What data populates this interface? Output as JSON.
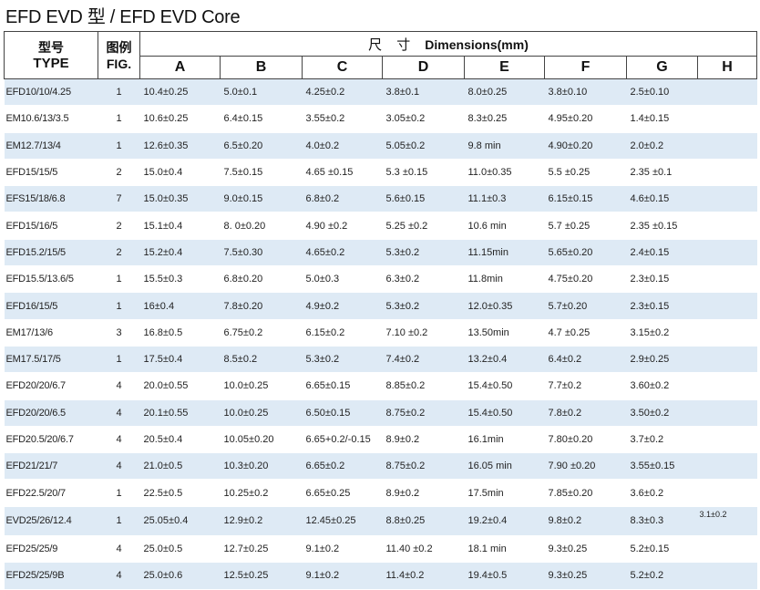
{
  "page_title": "EFD EVD 型  / EFD EVD Core",
  "header": {
    "type_cn": "型号",
    "type_en": "TYPE",
    "fig_cn": "图例",
    "fig_en": "FIG.",
    "dim_cn": "尺 寸",
    "dim_en": "Dimensions(mm)",
    "cols": [
      "A",
      "B",
      "C",
      "D",
      "E",
      "F",
      "G",
      "H"
    ]
  },
  "rows": [
    {
      "type": "EFD10/10/4.25",
      "fig": "1",
      "a": "10.4±0.25",
      "b": "5.0±0.1",
      "c": "4.25±0.2",
      "d": "3.8±0.1",
      "e": "8.0±0.25",
      "f": "3.8±0.10",
      "g": "2.5±0.10",
      "h": ""
    },
    {
      "type": "EM10.6/13/3.5",
      "fig": "1",
      "a": "10.6±0.25",
      "b": "6.4±0.15",
      "c": "3.55±0.2",
      "d": "3.05±0.2",
      "e": "8.3±0.25",
      "f": "4.95±0.20",
      "g": "1.4±0.15",
      "h": ""
    },
    {
      "type": "EM12.7/13/4",
      "fig": "1",
      "a": "12.6±0.35",
      "b": "6.5±0.20",
      "c": "4.0±0.2",
      "d": "5.05±0.2",
      "e": "9.8  min",
      "f": "4.90±0.20",
      "g": "2.0±0.2",
      "h": ""
    },
    {
      "type": "EFD15/15/5",
      "fig": "2",
      "a": "15.0±0.4",
      "b": "7.5±0.15",
      "c": "4.65 ±0.15",
      "d": "5.3 ±0.15",
      "e": "11.0±0.35",
      "f": "5.5 ±0.25",
      "g": "2.35  ±0.1",
      "h": ""
    },
    {
      "type": "EFS15/18/6.8",
      "fig": "7",
      "a": "15.0±0.35",
      "b": "9.0±0.15",
      "c": "6.8±0.2",
      "d": "5.6±0.15",
      "e": "11.1±0.3",
      "f": "6.15±0.15",
      "g": "4.6±0.15",
      "h": ""
    },
    {
      "type": "EFD15/16/5",
      "fig": "2",
      "a": "15.1±0.4",
      "b": "8. 0±0.20",
      "c": "4.90 ±0.2",
      "d": "5.25 ±0.2",
      "e": "10.6   min",
      "f": "5.7 ±0.25",
      "g": "2.35 ±0.15",
      "h": ""
    },
    {
      "type": "EFD15.2/15/5",
      "fig": "2",
      "a": "15.2±0.4",
      "b": "7.5±0.30",
      "c": "4.65±0.2",
      "d": "5.3±0.2",
      "e": "11.15min",
      "f": "5.65±0.20",
      "g": "2.4±0.15",
      "h": ""
    },
    {
      "type": "EFD15.5/13.6/5",
      "fig": "1",
      "a": "15.5±0.3",
      "b": "6.8±0.20",
      "c": "5.0±0.3",
      "d": "6.3±0.2",
      "e": "11.8min",
      "f": "4.75±0.20",
      "g": "2.3±0.15",
      "h": ""
    },
    {
      "type": "EFD16/15/5",
      "fig": "1",
      "a": "16±0.4",
      "b": "7.8±0.20",
      "c": "4.9±0.2",
      "d": "5.3±0.2",
      "e": "12.0±0.35",
      "f": "5.7±0.20",
      "g": "2.3±0.15",
      "h": ""
    },
    {
      "type": "EM17/13/6",
      "fig": "3",
      "a": "16.8±0.5",
      "b": "6.75±0.2",
      "c": "6.15±0.2",
      "d": "7.10 ±0.2",
      "e": "13.50min",
      "f": "4.7 ±0.25",
      "g": "3.15±0.2",
      "h": ""
    },
    {
      "type": "EM17.5/17/5",
      "fig": "1",
      "a": "17.5±0.4",
      "b": "8.5±0.2",
      "c": "5.3±0.2",
      "d": "7.4±0.2",
      "e": "13.2±0.4",
      "f": "6.4±0.2",
      "g": "2.9±0.25",
      "h": ""
    },
    {
      "type": "EFD20/20/6.7",
      "fig": "4",
      "a": "20.0±0.55",
      "b": "10.0±0.25",
      "c": "6.65±0.15",
      "d": "8.85±0.2",
      "e": "15.4±0.50",
      "f": "7.7±0.2",
      "g": "3.60±0.2",
      "h": ""
    },
    {
      "type": "EFD20/20/6.5",
      "fig": "4",
      "a": "20.1±0.55",
      "b": "10.0±0.25",
      "c": "6.50±0.15",
      "d": "8.75±0.2",
      "e": "15.4±0.50",
      "f": "7.8±0.2",
      "g": "3.50±0.2",
      "h": ""
    },
    {
      "type": "EFD20.5/20/6.7",
      "fig": "4",
      "a": "20.5±0.4",
      "b": "10.05±0.20",
      "c": "6.65+0.2/-0.15",
      "d": "8.9±0.2",
      "e": "16.1min",
      "f": "7.80±0.20",
      "g": "3.7±0.2",
      "h": ""
    },
    {
      "type": "EFD21/21/7",
      "fig": "4",
      "a": "21.0±0.5",
      "b": "10.3±0.20",
      "c": "6.65±0.2",
      "d": "8.75±0.2",
      "e": "16.05 min",
      "f": "7.90 ±0.20",
      "g": "3.55±0.15",
      "h": ""
    },
    {
      "type": "EFD22.5/20/7",
      "fig": "1",
      "a": "22.5±0.5",
      "b": "10.25±0.2",
      "c": "6.65±0.25",
      "d": "8.9±0.2",
      "e": "17.5min",
      "f": "7.85±0.20",
      "g": "3.6±0.2",
      "h": ""
    },
    {
      "type": "EVD25/26/12.4",
      "fig": "1",
      "a": "25.05±0.4",
      "b": "12.9±0.2",
      "c": "12.45±0.25",
      "d": "8.8±0.25",
      "e": "19.2±0.4",
      "f": "9.8±0.2",
      "g": "8.3±0.3",
      "h": "3.1±0.2"
    },
    {
      "type": "EFD25/25/9",
      "fig": "4",
      "a": "25.0±0.5",
      "b": "12.7±0.25",
      "c": "9.1±0.2",
      "d": "11.40 ±0.2",
      "e": "18.1 min",
      "f": "9.3±0.25",
      "g": "5.2±0.15",
      "h": ""
    },
    {
      "type": "EFD25/25/9B",
      "fig": "4",
      "a": "25.0±0.6",
      "b": "12.5±0.25",
      "c": "9.1±0.2",
      "d": "11.4±0.2",
      "e": "19.4±0.5",
      "f": "9.3±0.25",
      "g": "5.2±0.2",
      "h": ""
    }
  ]
}
